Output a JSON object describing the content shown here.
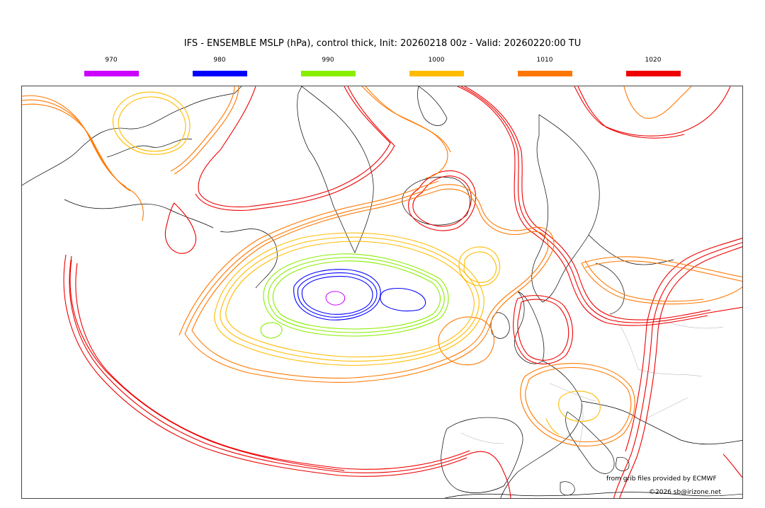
{
  "title": "IFS - ENSEMBLE MSLP (hPa), control thick, Init: 20260218 00z - Valid: 20260220:00 TU",
  "legend": [
    {
      "label": "970",
      "color": "#cc00ff"
    },
    {
      "label": "980",
      "color": "#0000ff"
    },
    {
      "label": "990",
      "color": "#88ee00"
    },
    {
      "label": "1000",
      "color": "#ffbb00"
    },
    {
      "label": "1010",
      "color": "#ff7700"
    },
    {
      "label": "1020",
      "color": "#ee0000"
    }
  ],
  "credit_source": "from grib files provided by ECMWF",
  "credit_copyright": "©2026 sb@irizone.net"
}
